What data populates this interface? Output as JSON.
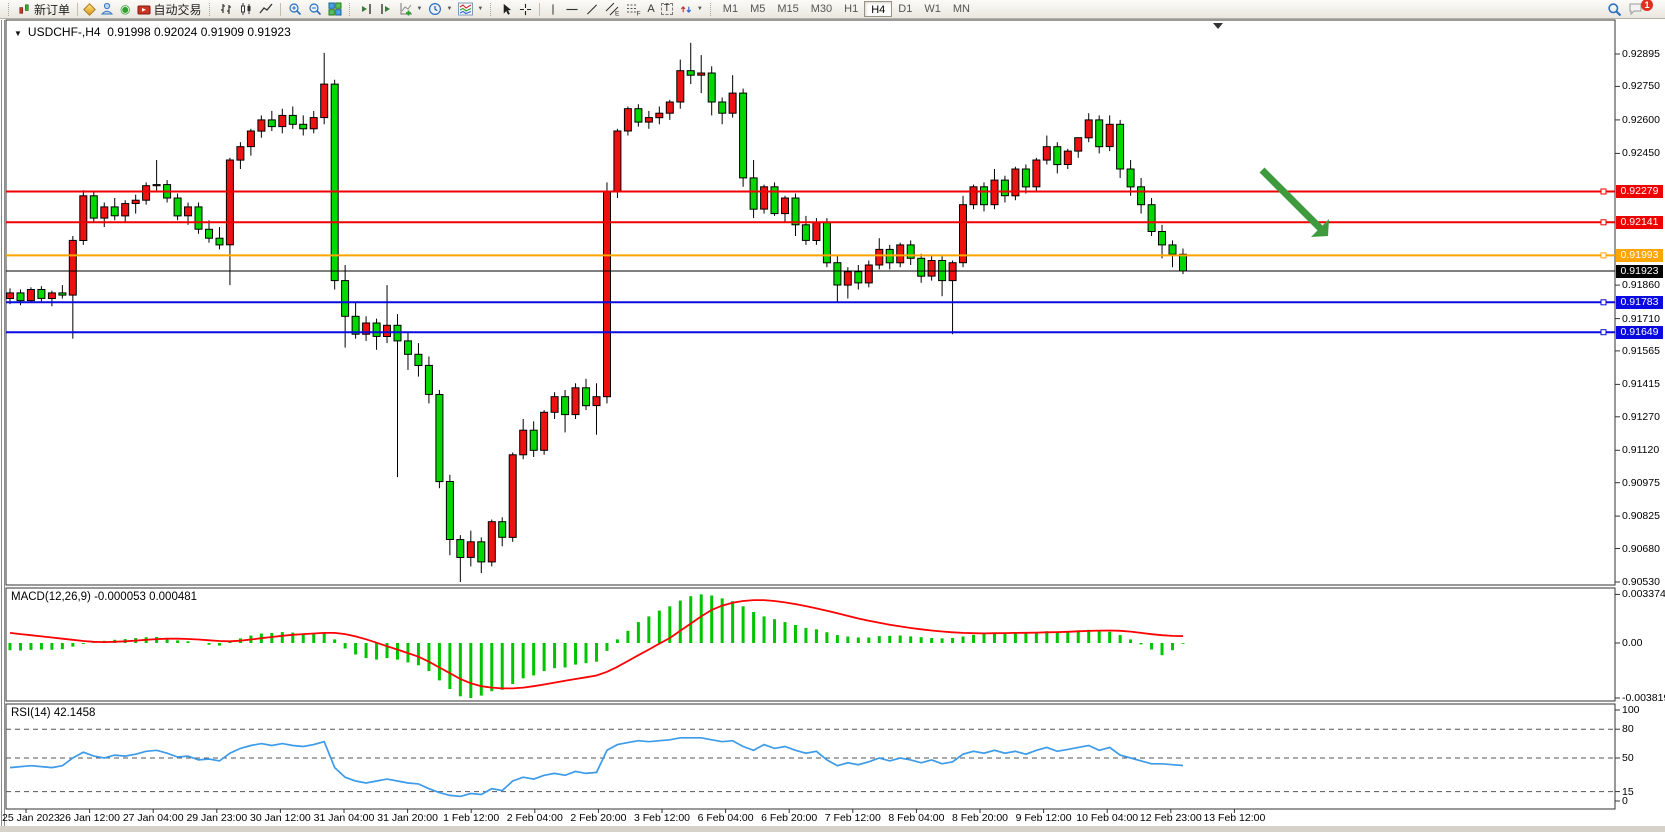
{
  "toolbar": {
    "new_order_label": "新订单",
    "auto_trading_label": "自动交易",
    "timeframes": [
      "M1",
      "M5",
      "M15",
      "M30",
      "H1",
      "H4",
      "D1",
      "W1",
      "MN"
    ],
    "active_timeframe": "H4",
    "glyphs": {
      "channel": "E",
      "fibo": "F",
      "text": "A",
      "label": "T"
    },
    "notification_badge": "1"
  },
  "chart": {
    "symbol_period": "USDCHF-,H4",
    "ohlc_display": "0.91998 0.92024 0.91909 0.91923",
    "macd_label": "MACD(12,26,9) -0.000053 0.000481",
    "rsi_label": "RSI(14) 42.1458"
  },
  "chart_data": {
    "type": "candlestick",
    "symbol": "USDCHF-",
    "timeframe": "H4",
    "current_bar": {
      "open": "0.91998",
      "high": "0.92024",
      "low": "0.91909",
      "close": "0.91923"
    },
    "price_unit": "1e-5",
    "up_color": "#ee1111",
    "down_color": "#00d800",
    "bars": [
      [
        91800,
        91845,
        91775,
        91825
      ],
      [
        91825,
        91840,
        91770,
        91790
      ],
      [
        91790,
        91850,
        91780,
        91840
      ],
      [
        91840,
        91855,
        91785,
        91800
      ],
      [
        91800,
        91835,
        91765,
        91825
      ],
      [
        91825,
        91860,
        91800,
        91815
      ],
      [
        91815,
        92080,
        91620,
        92060
      ],
      [
        92060,
        92285,
        92040,
        92260
      ],
      [
        92260,
        92280,
        92140,
        92160
      ],
      [
        92160,
        92230,
        92120,
        92210
      ],
      [
        92210,
        92250,
        92150,
        92170
      ],
      [
        92170,
        92240,
        92140,
        92225
      ],
      [
        92225,
        92265,
        92180,
        92240
      ],
      [
        92240,
        92320,
        92220,
        92305
      ],
      [
        92305,
        92420,
        92280,
        92310
      ],
      [
        92310,
        92330,
        92230,
        92250
      ],
      [
        92250,
        92270,
        92150,
        92170
      ],
      [
        92170,
        92230,
        92130,
        92210
      ],
      [
        92210,
        92230,
        92090,
        92110
      ],
      [
        92110,
        92150,
        92050,
        92070
      ],
      [
        92070,
        92120,
        92020,
        92040
      ],
      [
        92040,
        92430,
        91860,
        92420
      ],
      [
        92420,
        92500,
        92380,
        92480
      ],
      [
        92480,
        92560,
        92440,
        92550
      ],
      [
        92550,
        92620,
        92520,
        92600
      ],
      [
        92600,
        92640,
        92550,
        92570
      ],
      [
        92570,
        92650,
        92540,
        92620
      ],
      [
        92620,
        92660,
        92560,
        92580
      ],
      [
        92580,
        92620,
        92530,
        92560
      ],
      [
        92560,
        92640,
        92540,
        92610
      ],
      [
        92610,
        92900,
        92580,
        92760
      ],
      [
        92760,
        92780,
        91840,
        91880
      ],
      [
        91880,
        91950,
        91580,
        91720
      ],
      [
        91720,
        91780,
        91620,
        91640
      ],
      [
        91640,
        91720,
        91610,
        91690
      ],
      [
        91690,
        91710,
        91570,
        91630
      ],
      [
        91630,
        91860,
        91600,
        91680
      ],
      [
        91680,
        91730,
        91000,
        91610
      ],
      [
        91610,
        91650,
        91480,
        91550
      ],
      [
        91550,
        91600,
        91450,
        91500
      ],
      [
        91500,
        91540,
        91330,
        91370
      ],
      [
        91370,
        91390,
        90950,
        90980
      ],
      [
        90980,
        91010,
        90650,
        90720
      ],
      [
        90720,
        90740,
        90530,
        90640
      ],
      [
        90640,
        90760,
        90600,
        90710
      ],
      [
        90710,
        90730,
        90570,
        90620
      ],
      [
        90620,
        90810,
        90600,
        90800
      ],
      [
        90800,
        90820,
        90690,
        90730
      ],
      [
        90730,
        91110,
        90710,
        91100
      ],
      [
        91100,
        91260,
        91080,
        91210
      ],
      [
        91210,
        91250,
        91090,
        91120
      ],
      [
        91120,
        91300,
        91100,
        91290
      ],
      [
        91290,
        91380,
        91260,
        91360
      ],
      [
        91360,
        91390,
        91200,
        91280
      ],
      [
        91280,
        91420,
        91260,
        91400
      ],
      [
        91400,
        91440,
        91300,
        91320
      ],
      [
        91320,
        91420,
        91190,
        91360
      ],
      [
        91360,
        92320,
        91330,
        92280
      ],
      [
        92280,
        92560,
        92250,
        92550
      ],
      [
        92550,
        92660,
        92530,
        92650
      ],
      [
        92650,
        92670,
        92570,
        92590
      ],
      [
        92590,
        92640,
        92560,
        92610
      ],
      [
        92610,
        92660,
        92580,
        92630
      ],
      [
        92630,
        92690,
        92600,
        92680
      ],
      [
        92680,
        92870,
        92650,
        92820
      ],
      [
        92820,
        92945,
        92760,
        92800
      ],
      [
        92800,
        92890,
        92720,
        92810
      ],
      [
        92810,
        92840,
        92620,
        92680
      ],
      [
        92680,
        92700,
        92580,
        92630
      ],
      [
        92630,
        92800,
        92610,
        92720
      ],
      [
        92720,
        92740,
        92300,
        92340
      ],
      [
        92340,
        92420,
        92160,
        92200
      ],
      [
        92200,
        92310,
        92180,
        92300
      ],
      [
        92300,
        92320,
        92170,
        92180
      ],
      [
        92180,
        92260,
        92140,
        92250
      ],
      [
        92250,
        92270,
        92080,
        92130
      ],
      [
        92130,
        92170,
        92040,
        92060
      ],
      [
        92060,
        92160,
        92040,
        92140
      ],
      [
        92140,
        92160,
        91940,
        91960
      ],
      [
        91960,
        91990,
        91780,
        91860
      ],
      [
        91860,
        91940,
        91800,
        91920
      ],
      [
        91920,
        91950,
        91840,
        91870
      ],
      [
        91870,
        91970,
        91850,
        91950
      ],
      [
        91950,
        92070,
        91930,
        92020
      ],
      [
        92020,
        92040,
        91930,
        91960
      ],
      [
        91960,
        92050,
        91940,
        92040
      ],
      [
        92040,
        92060,
        91950,
        91980
      ],
      [
        91980,
        92000,
        91870,
        91900
      ],
      [
        91900,
        91990,
        91880,
        91970
      ],
      [
        91970,
        91990,
        91810,
        91880
      ],
      [
        91880,
        91970,
        91640,
        91960
      ],
      [
        91960,
        92260,
        91940,
        92220
      ],
      [
        92220,
        92310,
        92200,
        92300
      ],
      [
        92300,
        92320,
        92190,
        92220
      ],
      [
        92220,
        92380,
        92200,
        92330
      ],
      [
        92330,
        92350,
        92230,
        92260
      ],
      [
        92260,
        92390,
        92240,
        92380
      ],
      [
        92380,
        92400,
        92270,
        92300
      ],
      [
        92300,
        92430,
        92280,
        92420
      ],
      [
        92420,
        92530,
        92400,
        92480
      ],
      [
        92480,
        92500,
        92360,
        92400
      ],
      [
        92400,
        92470,
        92380,
        92460
      ],
      [
        92460,
        92520,
        92430,
        92520
      ],
      [
        92520,
        92630,
        92500,
        92600
      ],
      [
        92600,
        92620,
        92450,
        92480
      ],
      [
        92480,
        92620,
        92460,
        92580
      ],
      [
        92580,
        92600,
        92340,
        92380
      ],
      [
        92380,
        92420,
        92260,
        92300
      ],
      [
        92300,
        92340,
        92180,
        92220
      ],
      [
        92220,
        92250,
        92080,
        92100
      ],
      [
        92100,
        92130,
        91980,
        92040
      ],
      [
        92040,
        92060,
        91940,
        91998
      ],
      [
        91998,
        92024,
        91909,
        91923
      ]
    ],
    "levels": [
      {
        "value": 92279,
        "label": "0.92279",
        "color": "#ee0000",
        "handle": true,
        "width": 2
      },
      {
        "value": 92141,
        "label": "0.92141",
        "color": "#ee0000",
        "handle": true,
        "width": 2
      },
      {
        "value": 91993,
        "label": "0.91993",
        "color": "#ffa500",
        "handle": true,
        "width": 2
      },
      {
        "value": 91923,
        "label": "0.91923",
        "color": "#000000",
        "handle": false,
        "width": 1
      },
      {
        "value": 91783,
        "label": "0.91783",
        "color": "#0a0ae0",
        "handle": true,
        "width": 2
      },
      {
        "value": 91649,
        "label": "0.91649",
        "color": "#0a0ae0",
        "handle": true,
        "width": 2
      }
    ],
    "price_ticks": [
      92895,
      92750,
      92600,
      92450,
      91860,
      91710,
      91565,
      91415,
      91270,
      91120,
      90975,
      90825,
      90680,
      90530
    ],
    "macd": {
      "unit": "1e-6",
      "hist_color": "#00c400",
      "signal_color": "#ff0000",
      "axis": [
        {
          "v": 3374,
          "label": "0.003374"
        },
        {
          "v": 0,
          "label": "0.00"
        },
        {
          "v": -3819,
          "label": "-0.003819"
        }
      ],
      "hist": [
        -500,
        -520,
        -480,
        -450,
        -470,
        -430,
        -250,
        -60,
        80,
        150,
        220,
        270,
        340,
        400,
        420,
        330,
        180,
        120,
        0,
        -120,
        -180,
        80,
        320,
        520,
        650,
        700,
        760,
        720,
        660,
        660,
        720,
        250,
        -380,
        -800,
        -1050,
        -1150,
        -1050,
        -1150,
        -1350,
        -1550,
        -1950,
        -2600,
        -3200,
        -3700,
        -3819,
        -3650,
        -3350,
        -3250,
        -2850,
        -2450,
        -2250,
        -1950,
        -1750,
        -1700,
        -1500,
        -1400,
        -1300,
        -550,
        250,
        850,
        1450,
        1850,
        2250,
        2550,
        2950,
        3250,
        3374,
        3300,
        3100,
        2900,
        2550,
        2150,
        1850,
        1650,
        1450,
        1250,
        1050,
        950,
        750,
        550,
        450,
        380,
        380,
        480,
        500,
        520,
        460,
        400,
        350,
        320,
        350,
        450,
        560,
        640,
        720,
        700,
        720,
        700,
        760,
        820,
        800,
        820,
        880,
        920,
        860,
        780,
        550,
        250,
        -100,
        -450,
        -850,
        -500,
        -53
      ],
      "signal": [
        700,
        620,
        540,
        460,
        380,
        300,
        220,
        140,
        80,
        60,
        80,
        120,
        170,
        220,
        270,
        300,
        300,
        280,
        240,
        190,
        140,
        120,
        160,
        240,
        330,
        420,
        500,
        570,
        620,
        660,
        700,
        700,
        620,
        460,
        260,
        20,
        -220,
        -460,
        -700,
        -950,
        -1300,
        -1700,
        -2100,
        -2500,
        -2800,
        -3000,
        -3100,
        -3150,
        -3150,
        -3100,
        -3000,
        -2880,
        -2750,
        -2620,
        -2500,
        -2380,
        -2260,
        -2000,
        -1650,
        -1250,
        -850,
        -450,
        -50,
        350,
        850,
        1350,
        1850,
        2300,
        2600,
        2800,
        2920,
        2980,
        2980,
        2920,
        2820,
        2700,
        2560,
        2400,
        2240,
        2060,
        1880,
        1700,
        1540,
        1400,
        1270,
        1150,
        1040,
        950,
        870,
        800,
        740,
        700,
        680,
        670,
        680,
        690,
        700,
        710,
        720,
        740,
        760,
        780,
        810,
        840,
        860,
        870,
        850,
        790,
        700,
        610,
        540,
        490,
        481
      ]
    },
    "rsi": {
      "line_color": "#3d9be9",
      "levels": [
        80,
        50,
        15
      ],
      "axis": [
        {
          "v": 100,
          "label": "100"
        },
        {
          "v": 80,
          "label": "80"
        },
        {
          "v": 50,
          "label": "50"
        },
        {
          "v": 15,
          "label": "15"
        },
        {
          "v": 0,
          "label": "0"
        }
      ],
      "values": [
        40,
        41,
        42,
        41,
        40,
        42,
        50,
        56,
        52,
        50,
        53,
        52,
        54,
        57,
        58,
        55,
        51,
        52,
        48,
        49,
        47,
        55,
        60,
        63,
        65,
        63,
        65,
        63,
        62,
        64,
        67,
        40,
        30,
        26,
        24,
        26,
        28,
        26,
        24,
        23,
        18,
        14,
        11,
        10,
        13,
        12,
        18,
        16,
        26,
        30,
        28,
        32,
        34,
        32,
        36,
        34,
        35,
        58,
        64,
        66,
        68,
        67,
        68,
        69,
        71,
        71,
        71,
        69,
        67,
        68,
        62,
        58,
        64,
        60,
        62,
        58,
        55,
        57,
        48,
        42,
        45,
        43,
        46,
        50,
        47,
        50,
        48,
        45,
        48,
        44,
        46,
        54,
        57,
        55,
        58,
        55,
        57,
        54,
        58,
        61,
        57,
        59,
        61,
        63,
        58,
        61,
        53,
        50,
        47,
        44,
        44,
        43,
        42.1458
      ]
    },
    "time_labels": [
      "25 Jan 2023",
      "26 Jan 12:00",
      "27 Jan 04:00",
      "29 Jan 23:00",
      "30 Jan 12:00",
      "31 Jan 04:00",
      "31 Jan 20:00",
      "1 Feb 12:00",
      "2 Feb 04:00",
      "2 Feb 20:00",
      "3 Feb 12:00",
      "6 Feb 04:00",
      "6 Feb 20:00",
      "7 Feb 12:00",
      "8 Feb 04:00",
      "8 Feb 20:00",
      "9 Feb 12:00",
      "10 Feb 04:00",
      "12 Feb 23:00",
      "13 Feb 12:00"
    ],
    "annotation_arrow": {
      "from": [
        1262,
        170
      ],
      "to": [
        1328,
        236
      ],
      "color": "#3d9b3d"
    }
  }
}
